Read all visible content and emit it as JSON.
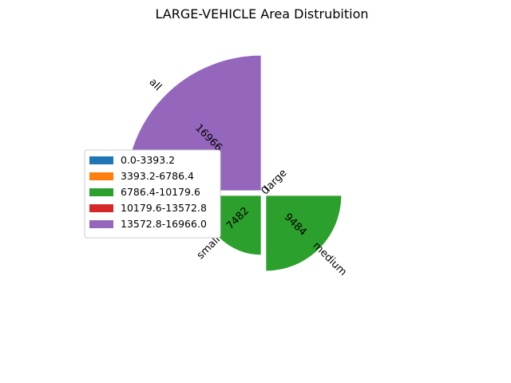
{
  "chart_data": {
    "type": "pie",
    "title": "LARGE-VEHICLE Area Distrubition",
    "categories": [
      "large",
      "medium",
      "small",
      "all"
    ],
    "values": [
      0,
      9484,
      7482,
      16966
    ],
    "value_labels": [
      "0",
      "9484",
      "7482",
      "16966"
    ],
    "legend": {
      "placement": "center-left",
      "entries": [
        {
          "label": "0.0-3393.2",
          "color": "#1f77b4"
        },
        {
          "label": "3393.2-6786.4",
          "color": "#ff7f0e"
        },
        {
          "label": "6786.4-10179.6",
          "color": "#2ca02c"
        },
        {
          "label": "10179.6-13572.8",
          "color": "#d62728"
        },
        {
          "label": "13572.8-16966.0",
          "color": "#9467bd"
        }
      ]
    },
    "slice_colors": [
      "#1f77b4",
      "#2ca02c",
      "#2ca02c",
      "#9467bd"
    ]
  }
}
